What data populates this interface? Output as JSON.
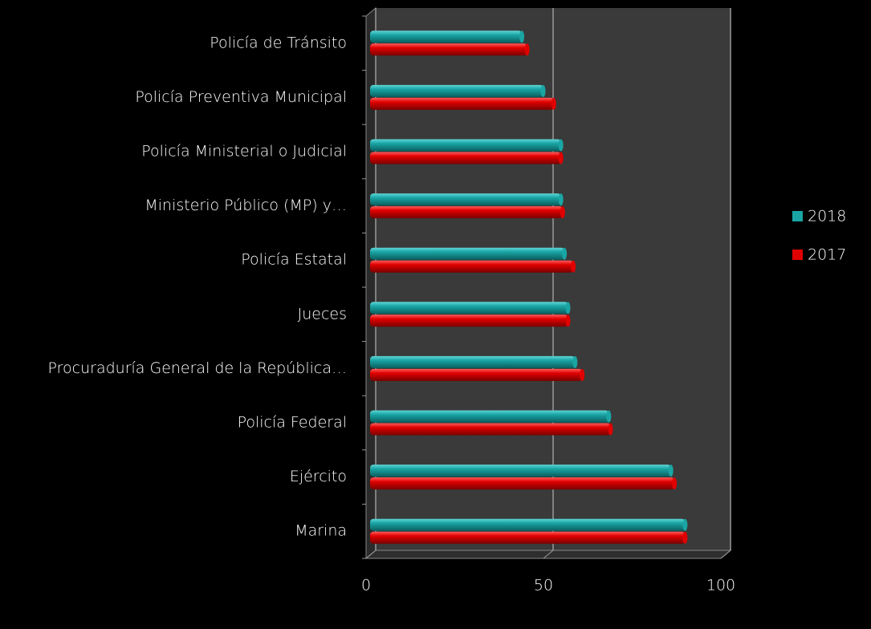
{
  "chart_data": {
    "type": "bar",
    "orientation": "horizontal",
    "categories": [
      "Policía de Tránsito",
      "Policía Preventiva Municipal",
      "Policía Ministerial o Judicial",
      "Ministerio Público (MP) y…",
      "Policía Estatal",
      "Jueces",
      "Procuraduría General de la República…",
      "Policía Federal",
      "Ejército",
      "Marina"
    ],
    "series": [
      {
        "name": "2018",
        "color": "#1aa5a5",
        "values": [
          43,
          49,
          54,
          54,
          55,
          56,
          58,
          67.5,
          85,
          89
        ]
      },
      {
        "name": "2017",
        "color": "#e00000",
        "values": [
          44.5,
          52,
          54,
          54.5,
          57.5,
          56,
          60,
          68,
          86,
          89
        ]
      }
    ],
    "xlim": [
      0,
      100
    ],
    "xticks": [
      0,
      50,
      100
    ],
    "grid": true,
    "legend": "right"
  }
}
